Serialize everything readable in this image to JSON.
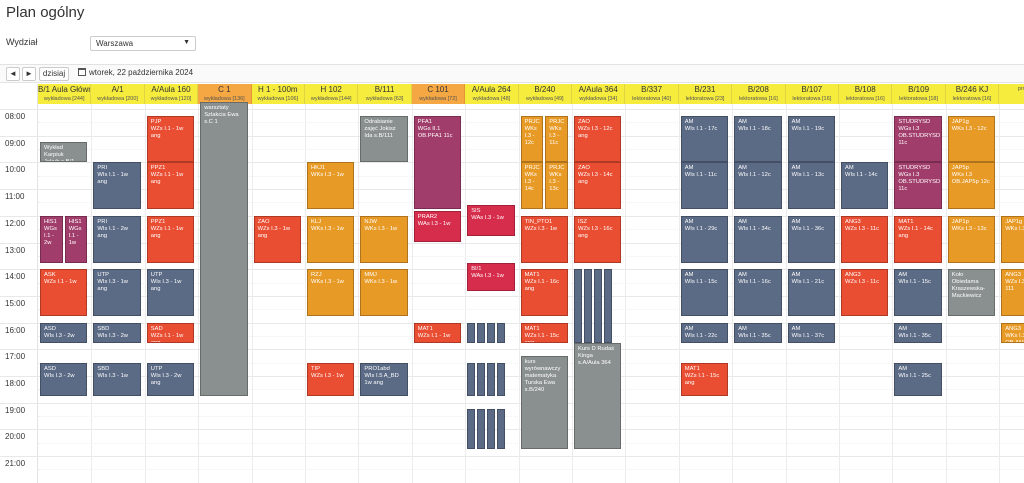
{
  "page_title": "Plan ogólny",
  "filter": {
    "label": "Wydział",
    "value": "Warszawa"
  },
  "toolbar": {
    "prev": "◄",
    "next": "►",
    "today": "dzisiaj",
    "date": "wtorek, 22 października 2024"
  },
  "hours": [
    "08:00",
    "09:00",
    "10:00",
    "11:00",
    "12:00",
    "13:00",
    "14:00",
    "15:00",
    "16:00",
    "17:00",
    "18:00",
    "19:00",
    "20:00",
    "21:00"
  ],
  "columns": [
    {
      "room": "B/1 Aula Główna",
      "sub": "wykładowa [244]",
      "hl": false
    },
    {
      "room": "A/1",
      "sub": "wykładowa [200]",
      "hl": false
    },
    {
      "room": "A/Aula 160",
      "sub": "wykładowa [120]",
      "hl": false
    },
    {
      "room": "C 1",
      "sub": "wykładowa [136]",
      "hl": true
    },
    {
      "room": "H 1 - 100m",
      "sub": "wykładowa [106]",
      "hl": false
    },
    {
      "room": "H 102",
      "sub": "wykładowa [144]",
      "hl": false
    },
    {
      "room": "B/111",
      "sub": "wykładowa [63]",
      "hl": false
    },
    {
      "room": "C 101",
      "sub": "wykładowa [72]",
      "hl": true
    },
    {
      "room": "A/Aula 264",
      "sub": "wykładowa [48]",
      "hl": false
    },
    {
      "room": "B/240",
      "sub": "wykładowa [49]",
      "hl": false
    },
    {
      "room": "A/Aula 364",
      "sub": "wykładowa [34]",
      "hl": false
    },
    {
      "room": "B/337",
      "sub": "lektoratowa [40]",
      "hl": false
    },
    {
      "room": "B/231",
      "sub": "lektoratowa [23]",
      "hl": false
    },
    {
      "room": "B/208",
      "sub": "lektoratowa [16]",
      "hl": false
    },
    {
      "room": "B/107",
      "sub": "lektoratowa [16]",
      "hl": false
    },
    {
      "room": "B/108",
      "sub": "lektoratowa [16]",
      "hl": false
    },
    {
      "room": "B/109",
      "sub": "lektoratowa [18]",
      "hl": false
    },
    {
      "room": "B/246 KJ",
      "sub": "lektoratowa [16]",
      "hl": false
    },
    {
      "room": "",
      "sub": "projek",
      "hl": false
    }
  ],
  "events": [
    {
      "col": 0,
      "part": 0,
      "parts": 1,
      "start": "09:15",
      "end": "10:00",
      "color": "gray",
      "text": "Wykład\nKarpiuk\nJakub s.B/1"
    },
    {
      "col": 0,
      "part": 0,
      "parts": 2,
      "start": "12:00",
      "end": "13:45",
      "color": "purple",
      "text": "HIS1\nWGs\nI.1 -\n2w"
    },
    {
      "col": 0,
      "part": 1,
      "parts": 2,
      "start": "12:00",
      "end": "13:45",
      "color": "purple",
      "text": "HIS1\nWGs\nI.1 -\n1w"
    },
    {
      "col": 0,
      "part": 0,
      "parts": 1,
      "start": "14:00",
      "end": "15:45",
      "color": "red",
      "text": "ASK\nWZs I.1 - 1w"
    },
    {
      "col": 0,
      "part": 0,
      "parts": 1,
      "start": "16:00",
      "end": "16:45",
      "color": "slate",
      "text": "ASD\nWIs I.3 - 2w"
    },
    {
      "col": 0,
      "part": 0,
      "parts": 1,
      "start": "17:30",
      "end": "18:45",
      "color": "slate",
      "text": "ASD\nWIs I.3 - 2w"
    },
    {
      "col": 1,
      "part": 0,
      "parts": 1,
      "start": "10:00",
      "end": "11:45",
      "color": "slate",
      "text": "PRI\nWIs I.1 - 1w\nang"
    },
    {
      "col": 1,
      "part": 0,
      "parts": 1,
      "start": "12:00",
      "end": "13:45",
      "color": "slate",
      "text": "PRI\nWIs I.1 - 2w\nang"
    },
    {
      "col": 1,
      "part": 0,
      "parts": 1,
      "start": "14:00",
      "end": "15:45",
      "color": "slate",
      "text": "UTP\nWIs I.3 - 1w\nang"
    },
    {
      "col": 1,
      "part": 0,
      "parts": 1,
      "start": "16:00",
      "end": "16:45",
      "color": "slate",
      "text": "SBD\nWIs I.3 - 2w"
    },
    {
      "col": 1,
      "part": 0,
      "parts": 1,
      "start": "17:30",
      "end": "18:45",
      "color": "slate",
      "text": "SBD\nWIs I.3 - 1w"
    },
    {
      "col": 2,
      "part": 0,
      "parts": 1,
      "start": "08:15",
      "end": "10:00",
      "color": "red",
      "text": "PJP\nWZs I.1 - 1w\nang"
    },
    {
      "col": 2,
      "part": 0,
      "parts": 1,
      "start": "10:00",
      "end": "11:45",
      "color": "red",
      "text": "PPZ1\nWZs I.1 - 1w\nang"
    },
    {
      "col": 2,
      "part": 0,
      "parts": 1,
      "start": "12:00",
      "end": "13:45",
      "color": "red",
      "text": "PPZ1\nWZs I.1 - 1w\nang"
    },
    {
      "col": 2,
      "part": 0,
      "parts": 1,
      "start": "14:00",
      "end": "15:45",
      "color": "slate",
      "text": "UTP\nWIs I.3 - 1w\nang"
    },
    {
      "col": 2,
      "part": 0,
      "parts": 1,
      "start": "16:00",
      "end": "16:45",
      "color": "red",
      "text": "SAD\nWZs I.1 - 1w\nang"
    },
    {
      "col": 2,
      "part": 0,
      "parts": 1,
      "start": "17:30",
      "end": "18:45",
      "color": "slate",
      "text": "UTP\nWIs I.3 - 2w\nang"
    },
    {
      "col": 3,
      "part": 0,
      "parts": 1,
      "start": "07:45",
      "end": "18:45",
      "color": "gray",
      "text": "warsztaty\nSzlakcia Ewa\ns.C 1"
    },
    {
      "col": 4,
      "part": 0,
      "parts": 1,
      "start": "12:00",
      "end": "13:45",
      "color": "red",
      "text": "ZAO\nWZs I.3 - 1w\nang"
    },
    {
      "col": 5,
      "part": 0,
      "parts": 1,
      "start": "10:00",
      "end": "11:45",
      "color": "orange",
      "text": "HKJ1\nWKs I.3 - 1w"
    },
    {
      "col": 5,
      "part": 0,
      "parts": 1,
      "start": "12:00",
      "end": "13:45",
      "color": "orange",
      "text": "KLJ\nWKs I.3 - 1w"
    },
    {
      "col": 5,
      "part": 0,
      "parts": 1,
      "start": "14:00",
      "end": "15:45",
      "color": "orange",
      "text": "RZJ\nWKs I.3 - 1w"
    },
    {
      "col": 5,
      "part": 0,
      "parts": 1,
      "start": "17:30",
      "end": "18:45",
      "color": "red",
      "text": "TIP\nWZs I.3 - 1w"
    },
    {
      "col": 6,
      "part": 0,
      "parts": 1,
      "start": "08:15",
      "end": "10:00",
      "color": "gray",
      "text": "Odrabianie\nzajęć Jokisz\nIda s.B/111"
    },
    {
      "col": 6,
      "part": 0,
      "parts": 1,
      "start": "12:00",
      "end": "13:45",
      "color": "orange",
      "text": "NJW\nWKs I.3 - 1w"
    },
    {
      "col": 6,
      "part": 0,
      "parts": 1,
      "start": "14:00",
      "end": "15:45",
      "color": "orange",
      "text": "MMJ\nWKs I.3 - 1w"
    },
    {
      "col": 6,
      "part": 0,
      "parts": 1,
      "start": "17:30",
      "end": "18:45",
      "color": "slate",
      "text": "PRO1abd\nWIs I.5 A_BD\n1w ang"
    },
    {
      "col": 7,
      "part": 0,
      "parts": 1,
      "start": "08:15",
      "end": "11:45",
      "color": "purple",
      "text": "PFA1\nWGs II.1\nOB.PFA1 11c"
    },
    {
      "col": 7,
      "part": 0,
      "parts": 1,
      "start": "11:50",
      "end": "13:00",
      "color": "crimson",
      "text": "PRAR2\nWAs I.3 - 1w"
    },
    {
      "col": 7,
      "part": 0,
      "parts": 1,
      "start": "16:00",
      "end": "16:45",
      "color": "red",
      "text": "MAT1\nWZs I.1 - 1w"
    },
    {
      "col": 8,
      "part": 0,
      "parts": 1,
      "start": "11:35",
      "end": "12:45",
      "color": "crimson",
      "text": "SIS\nWAs I.3 - 1w"
    },
    {
      "col": 8,
      "part": 0,
      "parts": 1,
      "start": "13:45",
      "end": "14:50",
      "color": "crimson",
      "text": "BI/1\nWAs I.3 - 1w"
    },
    {
      "col": 9,
      "part": 0,
      "parts": 2,
      "start": "08:15",
      "end": "10:00",
      "color": "orange",
      "text": "PRJC\nWKs\nI.3 -\n12c"
    },
    {
      "col": 9,
      "part": 1,
      "parts": 2,
      "start": "08:15",
      "end": "10:00",
      "color": "orange",
      "text": "PRJC\nWKs\nI.3 -\n11c"
    },
    {
      "col": 9,
      "part": 0,
      "parts": 2,
      "start": "10:00",
      "end": "11:45",
      "color": "orange",
      "text": "PRJC\nWKs\nI.3 -\n14c"
    },
    {
      "col": 9,
      "part": 1,
      "parts": 2,
      "start": "10:00",
      "end": "11:45",
      "color": "orange",
      "text": "PRJC\nWKs\nI.3 -\n13c"
    },
    {
      "col": 9,
      "part": 0,
      "parts": 1,
      "start": "12:00",
      "end": "13:45",
      "color": "red",
      "text": "TIN_PTO1\nWZs I.3 - 1w"
    },
    {
      "col": 9,
      "part": 0,
      "parts": 1,
      "start": "14:00",
      "end": "15:45",
      "color": "red",
      "text": "MAT1\nWZs I.1 - 16c\nang"
    },
    {
      "col": 9,
      "part": 0,
      "parts": 1,
      "start": "16:00",
      "end": "16:45",
      "color": "red",
      "text": "MAT1\nWZs I.1 - 15c\nang"
    },
    {
      "col": 9,
      "part": 0,
      "parts": 1,
      "start": "17:15",
      "end": "20:45",
      "color": "gray",
      "text": "kurs\nwyrównawczy\nmatematyka\nTurska Ewa\ns.B/240"
    },
    {
      "col": 10,
      "part": 0,
      "parts": 1,
      "start": "08:15",
      "end": "10:00",
      "color": "red",
      "text": "ZAO\nWZs I.3 - 12c\nang"
    },
    {
      "col": 10,
      "part": 0,
      "parts": 1,
      "start": "10:00",
      "end": "11:45",
      "color": "red",
      "text": "ZAO\nWZs I.3 - 14c\nang"
    },
    {
      "col": 10,
      "part": 0,
      "parts": 1,
      "start": "12:00",
      "end": "13:45",
      "color": "red",
      "text": "ISZ\nWZs I.3 - 16c\nang"
    },
    {
      "col": 10,
      "part": 0,
      "parts": 1,
      "start": "16:45",
      "end": "20:45",
      "color": "gray",
      "text": "Kurs D Rudaś\nKinga\ns.A/Aula 364"
    },
    {
      "col": 12,
      "part": 0,
      "parts": 1,
      "start": "08:15",
      "end": "10:00",
      "color": "slate",
      "text": "AM\nWIs I.1 - 17c"
    },
    {
      "col": 12,
      "part": 0,
      "parts": 1,
      "start": "10:00",
      "end": "11:45",
      "color": "slate",
      "text": "AM\nWIs I.1 - 11c"
    },
    {
      "col": 12,
      "part": 0,
      "parts": 1,
      "start": "12:00",
      "end": "13:45",
      "color": "slate",
      "text": "AM\nWIs I.1 - 29c"
    },
    {
      "col": 12,
      "part": 0,
      "parts": 1,
      "start": "14:00",
      "end": "15:45",
      "color": "slate",
      "text": "AM\nWIs I.1 - 15c"
    },
    {
      "col": 12,
      "part": 0,
      "parts": 1,
      "start": "16:00",
      "end": "16:45",
      "color": "slate",
      "text": "AM\nWIs I.1 - 22c"
    },
    {
      "col": 12,
      "part": 0,
      "parts": 1,
      "start": "17:30",
      "end": "18:45",
      "color": "red",
      "text": "MAT1\nWZs I.1 - 15c\nang"
    },
    {
      "col": 13,
      "part": 0,
      "parts": 1,
      "start": "08:15",
      "end": "10:00",
      "color": "slate",
      "text": "AM\nWIs I.1 - 18c"
    },
    {
      "col": 13,
      "part": 0,
      "parts": 1,
      "start": "10:00",
      "end": "11:45",
      "color": "slate",
      "text": "AM\nWIs I.1 - 12c"
    },
    {
      "col": 13,
      "part": 0,
      "parts": 1,
      "start": "12:00",
      "end": "13:45",
      "color": "slate",
      "text": "AM\nWIs I.1 - 34c"
    },
    {
      "col": 13,
      "part": 0,
      "parts": 1,
      "start": "14:00",
      "end": "15:45",
      "color": "slate",
      "text": "AM\nWIs I.1 - 16c"
    },
    {
      "col": 13,
      "part": 0,
      "parts": 1,
      "start": "16:00",
      "end": "16:45",
      "color": "slate",
      "text": "AM\nWIs I.1 - 35c"
    },
    {
      "col": 14,
      "part": 0,
      "parts": 1,
      "start": "08:15",
      "end": "10:00",
      "color": "slate",
      "text": "AM\nWIs I.1 - 19c"
    },
    {
      "col": 14,
      "part": 0,
      "parts": 1,
      "start": "10:00",
      "end": "11:45",
      "color": "slate",
      "text": "AM\nWIs I.1 - 13c"
    },
    {
      "col": 14,
      "part": 0,
      "parts": 1,
      "start": "12:00",
      "end": "13:45",
      "color": "slate",
      "text": "AM\nWIs I.1 - 36c"
    },
    {
      "col": 14,
      "part": 0,
      "parts": 1,
      "start": "14:00",
      "end": "15:45",
      "color": "slate",
      "text": "AM\nWIs I.1 - 21c"
    },
    {
      "col": 14,
      "part": 0,
      "parts": 1,
      "start": "16:00",
      "end": "16:45",
      "color": "slate",
      "text": "AM\nWIs I.1 - 37c"
    },
    {
      "col": 15,
      "part": 0,
      "parts": 1,
      "start": "10:00",
      "end": "11:45",
      "color": "slate",
      "text": "AM\nWIs I.1 - 14c"
    },
    {
      "col": 15,
      "part": 0,
      "parts": 1,
      "start": "12:00",
      "end": "13:45",
      "color": "red",
      "text": "ANG3\nWZs I.3 - 11c"
    },
    {
      "col": 15,
      "part": 0,
      "parts": 1,
      "start": "14:00",
      "end": "15:45",
      "color": "red",
      "text": "ANG3\nWZs I.3 - 11c"
    },
    {
      "col": 16,
      "part": 0,
      "parts": 1,
      "start": "08:15",
      "end": "10:00",
      "color": "purple",
      "text": "STUDRYSD\nWGs I.3\nOB.STUDRYSD\n11c"
    },
    {
      "col": 16,
      "part": 0,
      "parts": 1,
      "start": "10:00",
      "end": "11:45",
      "color": "purple",
      "text": "STUDRYSD\nWGs I.3\nOB.STUDRYSD\n11c"
    },
    {
      "col": 16,
      "part": 0,
      "parts": 1,
      "start": "12:00",
      "end": "13:45",
      "color": "red",
      "text": "MAT1\nWZs I.1 - 14c\nang"
    },
    {
      "col": 16,
      "part": 0,
      "parts": 1,
      "start": "14:00",
      "end": "15:45",
      "color": "slate",
      "text": "AM\nWIs I.1 - 15c"
    },
    {
      "col": 16,
      "part": 0,
      "parts": 1,
      "start": "16:00",
      "end": "16:45",
      "color": "slate",
      "text": "AM\nWIs I.1 - 35c"
    },
    {
      "col": 16,
      "part": 0,
      "parts": 1,
      "start": "17:30",
      "end": "18:45",
      "color": "slate",
      "text": "AM\nWIs I.1 - 25c"
    },
    {
      "col": 17,
      "part": 0,
      "parts": 1,
      "start": "08:15",
      "end": "10:00",
      "color": "orange",
      "text": "JAP1g\nWKs I.3 - 12c"
    },
    {
      "col": 17,
      "part": 0,
      "parts": 1,
      "start": "10:00",
      "end": "11:45",
      "color": "orange",
      "text": "JAP5p\nWKs I.3\nOB.JAP5p 12c"
    },
    {
      "col": 17,
      "part": 0,
      "parts": 1,
      "start": "12:00",
      "end": "13:45",
      "color": "orange",
      "text": "JAP1p\nWKs I.3 - 13c"
    },
    {
      "col": 17,
      "part": 0,
      "parts": 1,
      "start": "14:00",
      "end": "15:45",
      "color": "gray",
      "text": "Koło\nObiedama\nKraszewska-\nMackiewicz"
    },
    {
      "col": 18,
      "part": 0,
      "parts": 1,
      "start": "12:00",
      "end": "13:45",
      "color": "orange",
      "text": "JAP1g\nWKs I.3"
    },
    {
      "col": 18,
      "part": 0,
      "parts": 1,
      "start": "14:00",
      "end": "15:45",
      "color": "orange",
      "text": "ANG3\nWZs I.3\n111"
    },
    {
      "col": 18,
      "part": 0,
      "parts": 1,
      "start": "16:00",
      "end": "16:45",
      "color": "orange",
      "text": "ANG3\nWKs I.3\nOB.ANI\n111"
    }
  ],
  "mini_stacks": [
    {
      "col": 10,
      "count": 4,
      "start": "14:00",
      "end": "16:45"
    },
    {
      "col": 8,
      "count": 4,
      "start": "16:00",
      "end": "16:45"
    },
    {
      "col": 8,
      "count": 4,
      "start": "17:30",
      "end": "18:45"
    },
    {
      "col": 8,
      "count": 4,
      "start": "19:15",
      "end": "20:45"
    }
  ]
}
